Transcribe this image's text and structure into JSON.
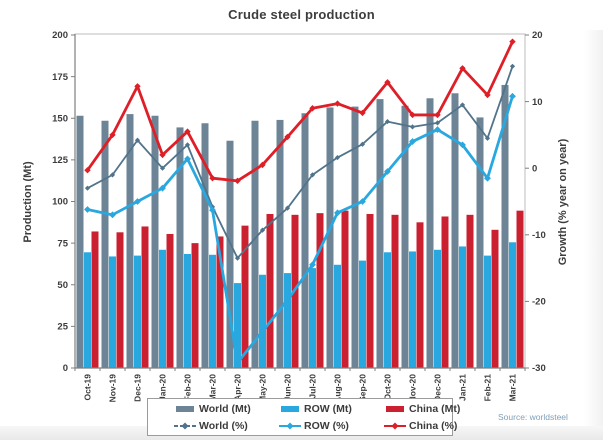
{
  "page": {
    "title": "Crude steel production",
    "source_note": "Source: worldsteel"
  },
  "chart_data": {
    "type": "combo-bar-line",
    "title": "Crude steel production",
    "grid": false,
    "legend_position": "bottom",
    "left_axis": {
      "label": "Production (Mt)",
      "range": [
        0,
        200
      ],
      "ticks": [
        0,
        25,
        50,
        75,
        100,
        125,
        150,
        175,
        200
      ]
    },
    "right_axis": {
      "label": "Growth (% year on year)",
      "range": [
        -30,
        20
      ],
      "ticks": [
        20,
        10,
        0,
        -10,
        -20,
        -30
      ]
    },
    "categories": [
      "Oct-19",
      "Nov-19",
      "Dec-19",
      "Jan-20",
      "Feb-20",
      "Mar-20",
      "Apr-20",
      "May-20",
      "Jun-20",
      "Jul-20",
      "Aug-20",
      "Sep-20",
      "Oct-20",
      "Nov-20",
      "Dec-20",
      "Jan-21",
      "Feb-21",
      "Mar-21"
    ],
    "bar_series": [
      {
        "name": "World (Mt)",
        "axis": "left",
        "color": "#6d8496",
        "values": [
          151.5,
          148.5,
          152.5,
          151.5,
          144.5,
          147,
          136.5,
          148.5,
          149,
          153,
          156.5,
          157,
          161.5,
          157.5,
          162,
          165,
          150.5,
          170
        ]
      },
      {
        "name": "ROW (Mt)",
        "axis": "left",
        "color": "#29a8df",
        "values": [
          69.5,
          67,
          67.5,
          71,
          68.5,
          68,
          51,
          56,
          57,
          60,
          62,
          64.5,
          69.5,
          70,
          71,
          73,
          67.5,
          75.5
        ]
      },
      {
        "name": "China (Mt)",
        "axis": "left",
        "color": "#cb2030",
        "values": [
          82,
          81.5,
          85,
          80.5,
          75,
          79,
          85.5,
          92.5,
          92,
          93,
          94.5,
          92.5,
          92,
          87.5,
          91,
          92,
          83,
          94.5
        ]
      }
    ],
    "line_series": [
      {
        "name": "World (%)",
        "axis": "right",
        "color": "#51748b",
        "width": 1.8,
        "marker": 2.6,
        "dash": "4,2",
        "values": [
          -3,
          -1,
          4.2,
          0,
          3.5,
          -5.8,
          -13.5,
          -9.3,
          -6,
          -1,
          1.6,
          3.6,
          7,
          6.2,
          6.8,
          9.5,
          4.5,
          15.3
        ]
      },
      {
        "name": "ROW (%)",
        "axis": "right",
        "color": "#29a8df",
        "width": 2.8,
        "marker": 3.4,
        "dash": null,
        "values": [
          -6.2,
          -7,
          -5,
          -3,
          1.4,
          -6.3,
          -29.2,
          -24.5,
          -19.8,
          -14.5,
          -6.7,
          -5,
          -0.5,
          4,
          5.8,
          3.5,
          -1.5,
          10.8
        ]
      },
      {
        "name": "China (%)",
        "axis": "right",
        "color": "#df1f27",
        "width": 2.8,
        "marker": 3.2,
        "dash": null,
        "values": [
          -0.3,
          5,
          12.3,
          2,
          5.5,
          -1.5,
          -1.9,
          0.5,
          4.7,
          9,
          9.7,
          8.3,
          12.9,
          8,
          8,
          15,
          11,
          19
        ]
      }
    ]
  },
  "colors": {
    "axis_line": "#7f7f7f",
    "frame": "#bdbdbd",
    "tick_text": "#3d3d3d"
  }
}
